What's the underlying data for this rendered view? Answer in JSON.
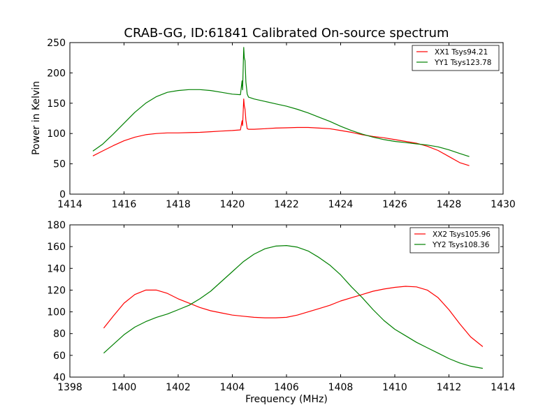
{
  "title": "CRAB-GG, ID:61841 Calibrated On-source spectrum",
  "colors": {
    "red": "#ff0000",
    "green": "#008000"
  },
  "chart_data": [
    {
      "type": "line",
      "ylabel": "Power in Kelvin",
      "xlabel": "",
      "xlim": [
        1414,
        1430
      ],
      "ylim": [
        0,
        250
      ],
      "xticks": [
        "1414",
        "1416",
        "1418",
        "1420",
        "1422",
        "1424",
        "1426",
        "1428",
        "1430"
      ],
      "yticks": [
        "0",
        "50",
        "100",
        "150",
        "200",
        "250"
      ],
      "legend_position": "top-right",
      "series": [
        {
          "name": "XX1 Tsys94.21",
          "color": "#ff0000",
          "x": [
            1414.85,
            1415.2,
            1415.6,
            1416.0,
            1416.4,
            1416.8,
            1417.2,
            1417.6,
            1418.0,
            1418.4,
            1418.8,
            1419.2,
            1419.6,
            1420.0,
            1420.3,
            1420.36,
            1420.38,
            1420.42,
            1420.44,
            1420.47,
            1420.5,
            1420.55,
            1420.6,
            1420.8,
            1421.2,
            1421.6,
            1422.0,
            1422.4,
            1422.8,
            1423.2,
            1423.6,
            1424.0,
            1424.4,
            1424.8,
            1425.2,
            1425.6,
            1426.0,
            1426.4,
            1426.8,
            1427.2,
            1427.6,
            1428.0,
            1428.4,
            1428.75
          ],
          "y": [
            63,
            71,
            80,
            88,
            94,
            98,
            100,
            101,
            101,
            101.5,
            102,
            103,
            104,
            105,
            106,
            121,
            113,
            157,
            146,
            140,
            122,
            108,
            107,
            107,
            108,
            109,
            109.5,
            110,
            110,
            109,
            108,
            105,
            102,
            98,
            95,
            93,
            90,
            87,
            84,
            79,
            72,
            62,
            52,
            47
          ]
        },
        {
          "name": "YY1 Tsys123.78",
          "color": "#008000",
          "x": [
            1414.85,
            1415.2,
            1415.6,
            1416.0,
            1416.4,
            1416.8,
            1417.2,
            1417.6,
            1418.0,
            1418.4,
            1418.8,
            1419.2,
            1419.6,
            1420.0,
            1420.3,
            1420.36,
            1420.38,
            1420.42,
            1420.44,
            1420.47,
            1420.5,
            1420.55,
            1420.6,
            1420.8,
            1421.2,
            1421.6,
            1422.0,
            1422.4,
            1422.8,
            1423.2,
            1423.6,
            1424.0,
            1424.4,
            1424.8,
            1425.2,
            1425.6,
            1426.0,
            1426.4,
            1426.8,
            1427.2,
            1427.6,
            1428.0,
            1428.4,
            1428.75
          ],
          "y": [
            71,
            82,
            99,
            117,
            135,
            150,
            161,
            168,
            171,
            172.5,
            172.5,
            171,
            168,
            165,
            164,
            187,
            172,
            242,
            225,
            220,
            185,
            165,
            160,
            157,
            153,
            149,
            145,
            140,
            134,
            127,
            120,
            112,
            105,
            99,
            94,
            90,
            87,
            85,
            83,
            81,
            78,
            73,
            67,
            62
          ]
        }
      ]
    },
    {
      "type": "line",
      "xlabel": "Frequency (MHz)",
      "ylabel": "",
      "xlim": [
        1398,
        1414
      ],
      "ylim": [
        40,
        180
      ],
      "xticks": [
        "1398",
        "1400",
        "1402",
        "1404",
        "1406",
        "1408",
        "1410",
        "1412",
        "1414"
      ],
      "yticks": [
        "40",
        "60",
        "80",
        "100",
        "120",
        "140",
        "160",
        "180"
      ],
      "legend_position": "top-right",
      "series": [
        {
          "name": "XX2 Tsys105.96",
          "color": "#ff0000",
          "x": [
            1399.25,
            1399.6,
            1400.0,
            1400.4,
            1400.8,
            1401.2,
            1401.6,
            1402.0,
            1402.4,
            1402.8,
            1403.2,
            1403.6,
            1404.0,
            1404.4,
            1404.8,
            1405.2,
            1405.6,
            1406.0,
            1406.4,
            1406.8,
            1407.2,
            1407.6,
            1408.0,
            1408.4,
            1408.8,
            1409.2,
            1409.6,
            1410.0,
            1410.4,
            1410.8,
            1411.2,
            1411.6,
            1412.0,
            1412.4,
            1412.8,
            1413.25
          ],
          "y": [
            85,
            96,
            108,
            116,
            120,
            120,
            117,
            112,
            108,
            104,
            101,
            99,
            97,
            96,
            95,
            94.5,
            94.5,
            95,
            97,
            100,
            103,
            106,
            110,
            113,
            116,
            119,
            121,
            122.5,
            123.5,
            123,
            120,
            113,
            102,
            89,
            77,
            68
          ]
        },
        {
          "name": "YY2 Tsys108.36",
          "color": "#008000",
          "x": [
            1399.25,
            1399.6,
            1400.0,
            1400.4,
            1400.8,
            1401.2,
            1401.6,
            1402.0,
            1402.4,
            1402.8,
            1403.2,
            1403.6,
            1404.0,
            1404.4,
            1404.8,
            1405.2,
            1405.6,
            1406.0,
            1406.4,
            1406.8,
            1407.2,
            1407.6,
            1408.0,
            1408.4,
            1408.8,
            1409.2,
            1409.6,
            1410.0,
            1410.4,
            1410.8,
            1411.2,
            1411.6,
            1412.0,
            1412.4,
            1412.8,
            1413.25
          ],
          "y": [
            62,
            70,
            79,
            86,
            91,
            95,
            98,
            102,
            106,
            112,
            119,
            128,
            137,
            146,
            153,
            158,
            160.5,
            161,
            159.5,
            156,
            150,
            143,
            134,
            123,
            113,
            102,
            92,
            84,
            78,
            72,
            67,
            62,
            57,
            53,
            50,
            48
          ]
        }
      ]
    }
  ]
}
